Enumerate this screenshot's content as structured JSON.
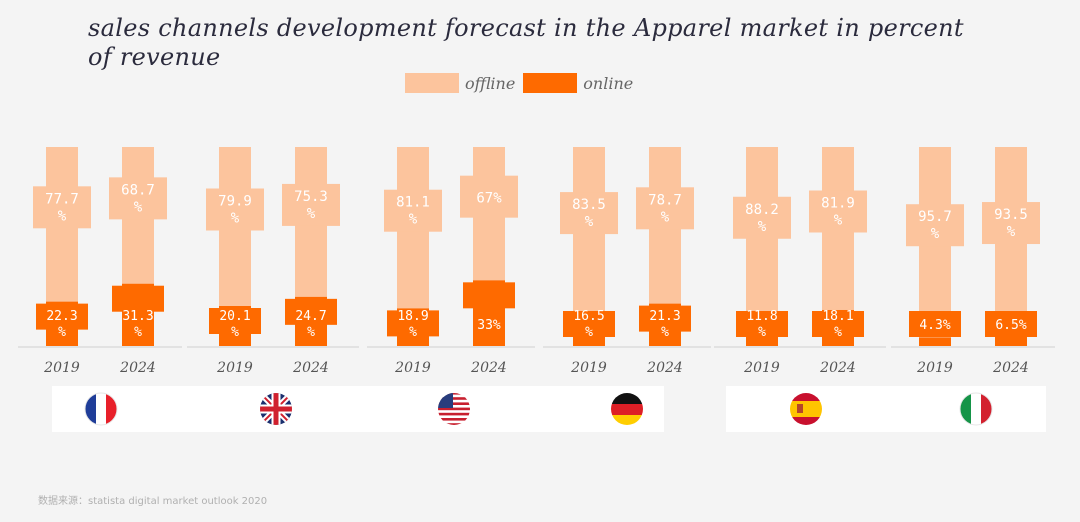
{
  "chart_data": {
    "type": "bar",
    "title": "sales channels development forecast in the Apparel market in percent of revenue",
    "legend": [
      "offline",
      "online"
    ],
    "colors": {
      "offline": "#fcc49d",
      "online": "#fe6a00"
    },
    "categories": [
      "2019",
      "2024"
    ],
    "groups": [
      {
        "country": "France",
        "offline": [
          77.7,
          68.7
        ],
        "online": [
          22.3,
          31.3
        ],
        "offline_labels": [
          "77.7 %",
          "68.7 %"
        ],
        "online_labels": [
          "22.3 %",
          "31.3 %"
        ]
      },
      {
        "country": "United Kingdom",
        "offline": [
          79.9,
          75.3
        ],
        "online": [
          20.1,
          24.7
        ],
        "offline_labels": [
          "79.9 %",
          "75.3 %"
        ],
        "online_labels": [
          "20.1 %",
          "24.7 %"
        ]
      },
      {
        "country": "United States",
        "offline": [
          81.1,
          67
        ],
        "online": [
          18.9,
          33
        ],
        "offline_labels": [
          "81.1 %",
          "67%"
        ],
        "online_labels": [
          "18.9 %",
          "33%"
        ]
      },
      {
        "country": "Germany",
        "offline": [
          83.5,
          78.7
        ],
        "online": [
          16.5,
          21.3
        ],
        "offline_labels": [
          "83.5 %",
          "78.7 %"
        ],
        "online_labels": [
          "16.5 %",
          "21.3 %"
        ]
      },
      {
        "country": "Spain",
        "offline": [
          88.2,
          81.9
        ],
        "online": [
          11.8,
          18.1
        ],
        "offline_labels": [
          "88.2 %",
          "81.9 %"
        ],
        "online_labels": [
          "11.8 %",
          "18.1 %"
        ]
      },
      {
        "country": "Italy",
        "offline": [
          95.7,
          93.5
        ],
        "online": [
          4.3,
          6.5
        ],
        "offline_labels": [
          "95.7 %",
          "93.5 %"
        ],
        "online_labels": [
          "4.3%",
          "6.5%"
        ]
      }
    ]
  },
  "source": "数据来源：statista digital market outlook 2020"
}
